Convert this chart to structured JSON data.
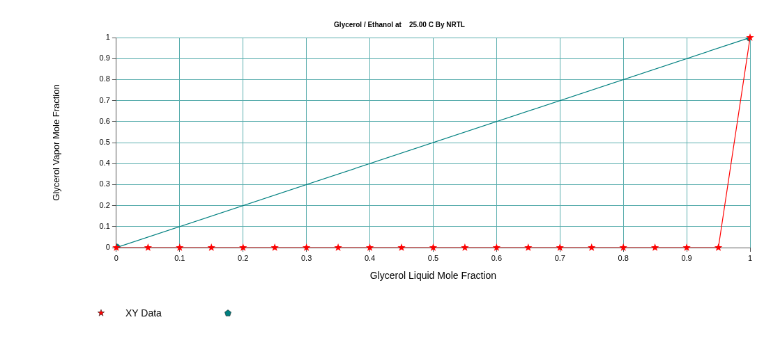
{
  "chart_data": {
    "type": "line",
    "title": "Glycerol / Ethanol at    25.00 C By NRTL",
    "xlabel": "Glycerol Liquid Mole Fraction",
    "ylabel": "Glycerol Vapor Mole Fraction",
    "series": [
      {
        "name": "XY Data",
        "color": "#ff0000",
        "marker": "star",
        "x": [
          0,
          0.05,
          0.1,
          0.15,
          0.2,
          0.25,
          0.3,
          0.35,
          0.4,
          0.45,
          0.5,
          0.55,
          0.6,
          0.65,
          0.7,
          0.75,
          0.8,
          0.85,
          0.9,
          0.95,
          1
        ],
        "values": [
          0,
          0,
          0,
          0,
          0,
          0,
          0,
          0,
          0,
          0,
          0,
          0,
          0,
          0,
          0,
          0,
          0,
          0,
          0,
          0,
          1
        ]
      },
      {
        "color": "#008080",
        "marker": "circle",
        "x": [
          0,
          1
        ],
        "values": [
          0,
          1
        ]
      }
    ],
    "xlim": [
      0,
      1
    ],
    "xticks": [
      0,
      0.1,
      0.2,
      0.3,
      0.4,
      0.5,
      0.6,
      0.7,
      0.8,
      0.9,
      1
    ],
    "ylim": [
      0,
      1
    ],
    "yticks": [
      0,
      0.1,
      0.2,
      0.3,
      0.4,
      0.5,
      0.6,
      0.7,
      0.8,
      0.9,
      1
    ],
    "grid": true,
    "legend": "bottom left"
  }
}
